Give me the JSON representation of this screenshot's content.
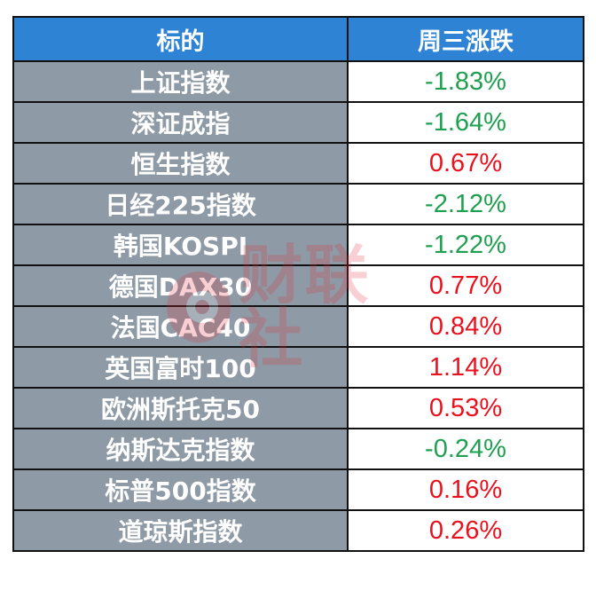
{
  "chart_data": {
    "type": "table",
    "columns": [
      "标的",
      "周三涨跌"
    ],
    "rows": [
      {
        "name": "上证指数",
        "change": "-1.83%",
        "value": -1.83,
        "color": "#1fa050"
      },
      {
        "name": "深证成指",
        "change": "-1.64%",
        "value": -1.64,
        "color": "#1fa050"
      },
      {
        "name": "恒生指数",
        "change": "0.67%",
        "value": 0.67,
        "color": "#e8121e"
      },
      {
        "name": "日经225指数",
        "change": "-2.12%",
        "value": -2.12,
        "color": "#1fa050"
      },
      {
        "name": "韩国KOSPI",
        "change": "-1.22%",
        "value": -1.22,
        "color": "#1fa050"
      },
      {
        "name": "德国DAX30",
        "change": "0.77%",
        "value": 0.77,
        "color": "#e8121e"
      },
      {
        "name": "法国CAC40",
        "change": "0.84%",
        "value": 0.84,
        "color": "#e8121e"
      },
      {
        "name": "英国富时100",
        "change": "1.14%",
        "value": 1.14,
        "color": "#e8121e"
      },
      {
        "name": "欧洲斯托克50",
        "change": "0.53%",
        "value": 0.53,
        "color": "#e8121e"
      },
      {
        "name": "纳斯达克指数",
        "change": "-0.24%",
        "value": -0.24,
        "color": "#1fa050"
      },
      {
        "name": "标普500指数",
        "change": "0.16%",
        "value": 0.16,
        "color": "#e8121e"
      },
      {
        "name": "道琼斯指数",
        "change": "0.26%",
        "value": 0.26,
        "color": "#e8121e"
      }
    ]
  },
  "colors": {
    "header_bg": "#2e83d5",
    "name_bg": "#8e9aa6",
    "negative": "#1fa050",
    "positive": "#e8121e"
  },
  "watermark": {
    "text": "财联社"
  }
}
